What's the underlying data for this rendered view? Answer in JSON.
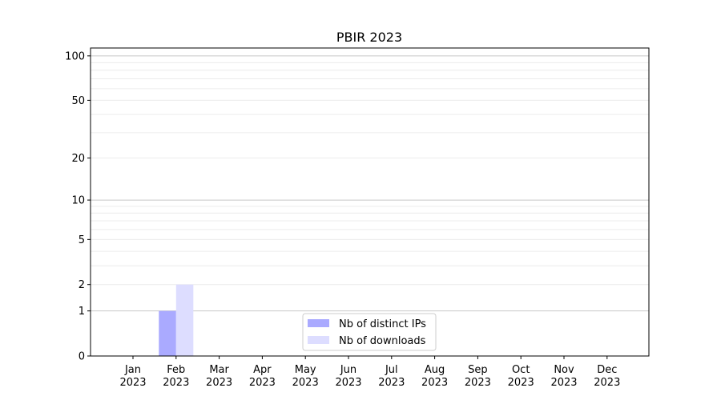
{
  "chart_data": {
    "type": "bar",
    "title": "PBIR 2023",
    "xlabel": "",
    "ylabel": "",
    "y_scale": "log(1+y)",
    "ylim": [
      0,
      113
    ],
    "yticks": [
      0,
      1,
      2,
      5,
      10,
      20,
      50,
      100
    ],
    "ytick_labels": [
      "0",
      "1",
      "2",
      "5",
      "10",
      "20",
      "50",
      "100"
    ],
    "grid": true,
    "categories": [
      [
        "Jan",
        "2023"
      ],
      [
        "Feb",
        "2023"
      ],
      [
        "Mar",
        "2023"
      ],
      [
        "Apr",
        "2023"
      ],
      [
        "May",
        "2023"
      ],
      [
        "Jun",
        "2023"
      ],
      [
        "Jul",
        "2023"
      ],
      [
        "Aug",
        "2023"
      ],
      [
        "Sep",
        "2023"
      ],
      [
        "Oct",
        "2023"
      ],
      [
        "Nov",
        "2023"
      ],
      [
        "Dec",
        "2023"
      ]
    ],
    "series": [
      {
        "name": "Nb of distinct IPs",
        "color": "#aaaaff",
        "values": [
          0,
          1,
          0,
          0,
          0,
          0,
          0,
          0,
          0,
          0,
          0,
          0
        ]
      },
      {
        "name": "Nb of downloads",
        "color": "#ddddff",
        "values": [
          0,
          2,
          0,
          0,
          0,
          0,
          0,
          0,
          0,
          0,
          0,
          0
        ]
      }
    ],
    "legend": "bottom-center"
  }
}
